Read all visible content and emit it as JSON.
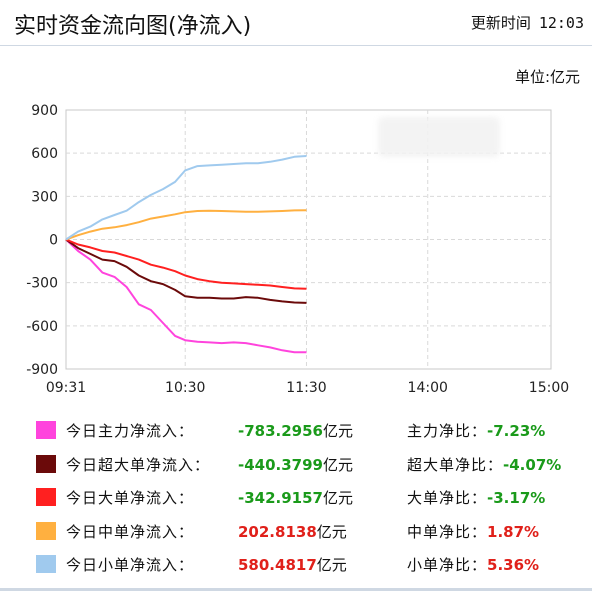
{
  "header": {
    "title": "实时资金流向图(净流入)",
    "update_label": "更新时间",
    "update_time": "12:03"
  },
  "unit_label": "单位:亿元",
  "chart_data": {
    "type": "line",
    "title": "实时资金流向图(净流入)",
    "ylabel": "",
    "xlabel": "",
    "ylim": [
      -900,
      900
    ],
    "yticks": [
      900,
      600,
      300,
      0,
      -300,
      -600,
      -900
    ],
    "x_tick_labels": [
      "09:31",
      "10:30",
      "11:30",
      "14:00",
      "15:00"
    ],
    "x": [
      "09:31",
      "09:37",
      "09:43",
      "09:49",
      "09:55",
      "10:01",
      "10:07",
      "10:13",
      "10:19",
      "10:25",
      "10:30",
      "10:36",
      "10:42",
      "10:48",
      "10:54",
      "11:00",
      "11:06",
      "11:12",
      "11:18",
      "11:24",
      "11:30"
    ],
    "grid": true,
    "series": [
      {
        "name": "今日主力净流入",
        "color": "#ff44dd",
        "values": [
          0,
          -80,
          -140,
          -230,
          -260,
          -330,
          -450,
          -490,
          -580,
          -670,
          -700,
          -710,
          -715,
          -720,
          -715,
          -720,
          -735,
          -750,
          -770,
          -783,
          -783.2956
        ]
      },
      {
        "name": "今日超大单净流入",
        "color": "#6b0a0a",
        "values": [
          0,
          -60,
          -100,
          -140,
          -150,
          -190,
          -250,
          -290,
          -310,
          -350,
          -395,
          -405,
          -405,
          -410,
          -410,
          -400,
          -405,
          -420,
          -430,
          -438,
          -440.3799
        ]
      },
      {
        "name": "今日大单净流入",
        "color": "#ff2020",
        "values": [
          0,
          -35,
          -55,
          -80,
          -90,
          -115,
          -140,
          -175,
          -195,
          -220,
          -250,
          -275,
          -290,
          -300,
          -305,
          -310,
          -315,
          -320,
          -330,
          -340,
          -342.9157
        ]
      },
      {
        "name": "今日中单净流入",
        "color": "#ffb040",
        "values": [
          0,
          30,
          55,
          75,
          85,
          100,
          120,
          145,
          160,
          175,
          190,
          198,
          200,
          198,
          195,
          193,
          193,
          195,
          198,
          202,
          202.8138
        ]
      },
      {
        "name": "今日小单净流入",
        "color": "#a0caee",
        "values": [
          0,
          55,
          90,
          140,
          170,
          200,
          260,
          310,
          350,
          400,
          480,
          510,
          515,
          520,
          525,
          530,
          530,
          540,
          555,
          575,
          580.4817
        ]
      }
    ]
  },
  "legend": [
    {
      "name": "今日主力净流入：",
      "value": "-783.2956",
      "unit": "亿元",
      "ratio_label": "主力净比：",
      "ratio": "-7.23%",
      "color": "#ff44dd",
      "sign": "neg"
    },
    {
      "name": "今日超大单净流入：",
      "value": "-440.3799",
      "unit": "亿元",
      "ratio_label": "超大单净比：",
      "ratio": "-4.07%",
      "color": "#6b0a0a",
      "sign": "neg"
    },
    {
      "name": "今日大单净流入：",
      "value": "-342.9157",
      "unit": "亿元",
      "ratio_label": "大单净比：",
      "ratio": "-3.17%",
      "color": "#ff2020",
      "sign": "neg"
    },
    {
      "name": "今日中单净流入：",
      "value": "202.8138",
      "unit": "亿元",
      "ratio_label": "中单净比：",
      "ratio": "1.87%",
      "color": "#ffb040",
      "sign": "pos"
    },
    {
      "name": "今日小单净流入：",
      "value": "580.4817",
      "unit": "亿元",
      "ratio_label": "小单净比：",
      "ratio": "5.36%",
      "color": "#a0caee",
      "sign": "pos"
    }
  ]
}
